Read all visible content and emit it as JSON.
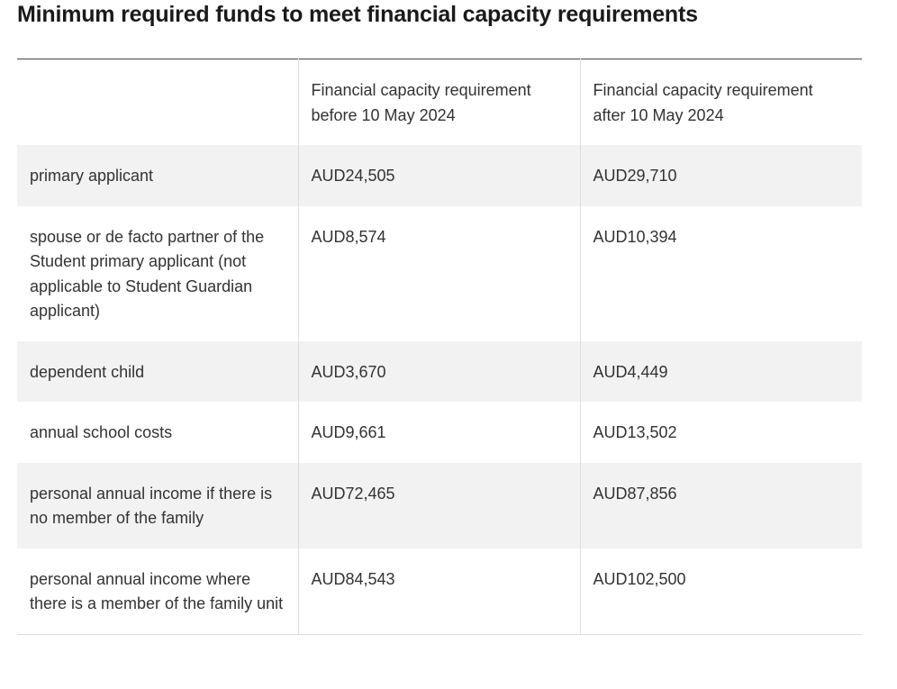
{
  "title": "Minimum required funds to meet financial capacity requirements",
  "table": {
    "header": [
      "Financial capacity requirement before 10 May 2024",
      "Financial capacity requirement after 10 May 2024"
    ],
    "rows": [
      [
        "primary applicant",
        "AUD24,505",
        "AUD29,710"
      ],
      [
        "spouse or de facto partner of the Student primary applicant (not applicable to Student Guardian applicant)",
        "AUD8,574",
        "AUD10,394"
      ],
      [
        "dependent child",
        "AUD3,670",
        "AUD4,449"
      ],
      [
        "annual school costs",
        "AUD9,661",
        "AUD13,502"
      ],
      [
        "personal annual income if there is no member of the family",
        "AUD72,465",
        "AUD87,856"
      ],
      [
        "personal annual income where there is a member of the family unit",
        "AUD84,543",
        "AUD102,500"
      ]
    ]
  }
}
